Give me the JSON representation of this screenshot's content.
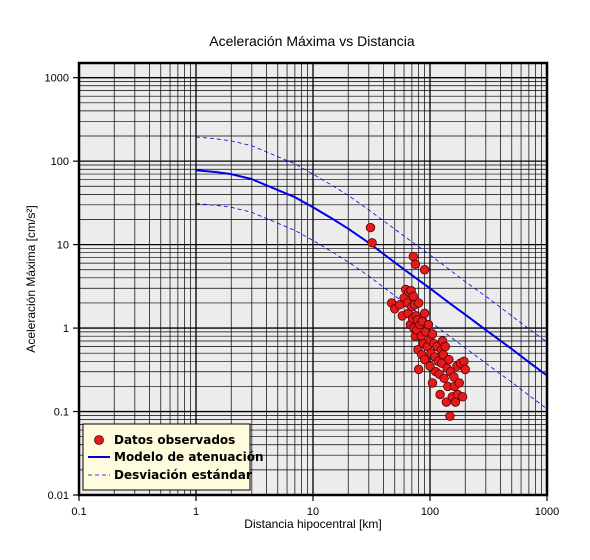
{
  "chart_data": {
    "type": "scatter",
    "title": "Aceleración Máxima vs Distancia",
    "xlabel": "Distancia hipocentral [km]",
    "ylabel": "Aceleración Máxima [cm/s²]",
    "xscale": "log",
    "yscale": "log",
    "xlim": [
      0.1,
      1000
    ],
    "ylim": [
      0.01,
      1500
    ],
    "xticks": [
      "0.1",
      "1",
      "10",
      "100",
      "1000"
    ],
    "yticks": [
      "0.01",
      "0.1",
      "1",
      "10",
      "100",
      "1000"
    ],
    "grid": true,
    "legend_position": "bottom-left",
    "colors": {
      "observed": "#e41a1c",
      "model": "#0000e6",
      "stddev": "#0000e6",
      "plot_bg": "#ececec",
      "legend_bg": "#fffbdc"
    },
    "series": [
      {
        "name": "Datos observados",
        "kind": "points",
        "points": [
          [
            31,
            16
          ],
          [
            32,
            10.5
          ],
          [
            72,
            7.2
          ],
          [
            75,
            5.8
          ],
          [
            90,
            5.0
          ],
          [
            47,
            2.0
          ],
          [
            50,
            1.7
          ],
          [
            55,
            1.9
          ],
          [
            58,
            1.4
          ],
          [
            60,
            2.3
          ],
          [
            62,
            2.9
          ],
          [
            64,
            2.0
          ],
          [
            65,
            1.5
          ],
          [
            66,
            2.7
          ],
          [
            68,
            1.1
          ],
          [
            69,
            2.8
          ],
          [
            70,
            1.8
          ],
          [
            71,
            1.3
          ],
          [
            72,
            2.4
          ],
          [
            73,
            1.0
          ],
          [
            74,
            1.9
          ],
          [
            75,
            0.8
          ],
          [
            76,
            1.4
          ],
          [
            77,
            0.95
          ],
          [
            78,
            1.25
          ],
          [
            79,
            0.55
          ],
          [
            80,
            2.0
          ],
          [
            80,
            0.32
          ],
          [
            82,
            1.1
          ],
          [
            84,
            0.8
          ],
          [
            85,
            0.48
          ],
          [
            86,
            1.2
          ],
          [
            88,
            0.65
          ],
          [
            90,
            1.5
          ],
          [
            90,
            0.42
          ],
          [
            92,
            0.9
          ],
          [
            95,
            0.6
          ],
          [
            97,
            1.1
          ],
          [
            100,
            0.35
          ],
          [
            100,
            0.72
          ],
          [
            102,
            0.5
          ],
          [
            105,
            0.85
          ],
          [
            105,
            0.22
          ],
          [
            108,
            0.65
          ],
          [
            110,
            0.45
          ],
          [
            112,
            0.3
          ],
          [
            115,
            0.6
          ],
          [
            118,
            0.4
          ],
          [
            120,
            0.28
          ],
          [
            122,
            0.16
          ],
          [
            125,
            0.55
          ],
          [
            126,
            0.38
          ],
          [
            128,
            0.7
          ],
          [
            130,
            0.48
          ],
          [
            132,
            0.25
          ],
          [
            135,
            0.6
          ],
          [
            138,
            0.13
          ],
          [
            140,
            0.33
          ],
          [
            142,
            0.2
          ],
          [
            145,
            0.42
          ],
          [
            148,
            0.088
          ],
          [
            150,
            0.3
          ],
          [
            155,
            0.15
          ],
          [
            160,
            0.26
          ],
          [
            162,
            0.2
          ],
          [
            165,
            0.13
          ],
          [
            170,
            0.35
          ],
          [
            172,
            0.16
          ],
          [
            178,
            0.22
          ],
          [
            182,
            0.38
          ],
          [
            190,
            0.15
          ],
          [
            195,
            0.4
          ],
          [
            200,
            0.32
          ]
        ]
      },
      {
        "name": "Modelo de atenuación",
        "kind": "line",
        "x": [
          1,
          1.5,
          2,
          3,
          5,
          7,
          10,
          15,
          20,
          30,
          50,
          70,
          100,
          150,
          200,
          300,
          500,
          700,
          1000
        ],
        "y": [
          78,
          74,
          70,
          61,
          45,
          37,
          28,
          20,
          15.5,
          10.5,
          6.1,
          4.3,
          3.0,
          1.95,
          1.45,
          0.95,
          0.56,
          0.39,
          0.27
        ]
      },
      {
        "name": "Desviación estándar",
        "kind": "dashed",
        "x": [
          1,
          1.5,
          2,
          3,
          5,
          7,
          10,
          15,
          20,
          30,
          50,
          70,
          100,
          150,
          200,
          300,
          500,
          700,
          1000
        ],
        "y": [
          195,
          185,
          175,
          153,
          113,
          93,
          70,
          50,
          39,
          26,
          15.3,
          10.8,
          7.5,
          4.9,
          3.6,
          2.4,
          1.4,
          0.98,
          0.68
        ]
      },
      {
        "name": "",
        "kind": "dashed",
        "x": [
          1,
          1.5,
          2,
          3,
          5,
          7,
          10,
          15,
          20,
          30,
          50,
          70,
          100,
          150,
          200,
          300,
          500,
          700,
          1000
        ],
        "y": [
          31,
          29.5,
          28,
          24.4,
          18,
          14.8,
          11.2,
          8.0,
          6.2,
          4.2,
          2.44,
          1.72,
          1.2,
          0.78,
          0.58,
          0.38,
          0.224,
          0.156,
          0.108
        ]
      }
    ],
    "legend": [
      "Datos observados",
      "Modelo de atenuación",
      "Desviación estándar"
    ]
  }
}
